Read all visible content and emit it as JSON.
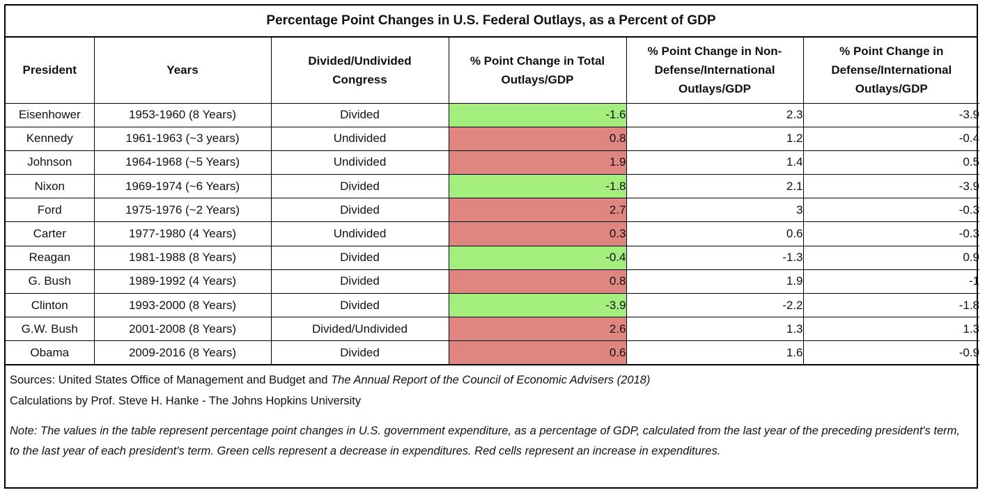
{
  "chart_data": {
    "type": "table",
    "title": "Percentage Point Changes in U.S. Federal Outlays, as a Percent of GDP",
    "columns": [
      "President",
      "Years",
      "Divided/Undivided Congress",
      "% Point Change in Total Outlays/GDP",
      "% Point Change in Non-Defense/International Outlays/GDP",
      "% Point Change in Defense/International Outlays/GDP"
    ],
    "rows": [
      {
        "president": "Eisenhower",
        "years": "1953-1960 (8 Years)",
        "congress": "Divided",
        "total": "-1.6",
        "nondefense": "2.3",
        "defense": "-3.9",
        "status": "decrease"
      },
      {
        "president": "Kennedy",
        "years": "1961-1963 (~3 years)",
        "congress": "Undivided",
        "total": "0.8",
        "nondefense": "1.2",
        "defense": "-0.4",
        "status": "increase"
      },
      {
        "president": "Johnson",
        "years": "1964-1968 (~5 Years)",
        "congress": "Undivided",
        "total": "1.9",
        "nondefense": "1.4",
        "defense": "0.5",
        "status": "increase"
      },
      {
        "president": "Nixon",
        "years": "1969-1974 (~6 Years)",
        "congress": "Divided",
        "total": "-1.8",
        "nondefense": "2.1",
        "defense": "-3.9",
        "status": "decrease"
      },
      {
        "president": "Ford",
        "years": "1975-1976 (~2 Years)",
        "congress": "Divided",
        "total": "2.7",
        "nondefense": "3",
        "defense": "-0.3",
        "status": "increase"
      },
      {
        "president": "Carter",
        "years": "1977-1980 (4 Years)",
        "congress": "Undivided",
        "total": "0.3",
        "nondefense": "0.6",
        "defense": "-0.3",
        "status": "increase"
      },
      {
        "president": "Reagan",
        "years": "1981-1988 (8 Years)",
        "congress": "Divided",
        "total": "-0.4",
        "nondefense": "-1.3",
        "defense": "0.9",
        "status": "decrease"
      },
      {
        "president": "G. Bush",
        "years": "1989-1992 (4 Years)",
        "congress": "Divided",
        "total": "0.8",
        "nondefense": "1.9",
        "defense": "-1",
        "status": "increase"
      },
      {
        "president": "Clinton",
        "years": "1993-2000 (8 Years)",
        "congress": "Divided",
        "total": "-3.9",
        "nondefense": "-2.2",
        "defense": "-1.8",
        "status": "decrease"
      },
      {
        "president": "G.W. Bush",
        "years": "2001-2008 (8 Years)",
        "congress": "Divided/Undivided",
        "total": "2.6",
        "nondefense": "1.3",
        "defense": "1.3",
        "status": "increase"
      },
      {
        "president": "Obama",
        "years": "2009-2016 (8 Years)",
        "congress": "Divided",
        "total": "0.6",
        "nondefense": "1.6",
        "defense": "-0.9",
        "status": "increase"
      }
    ],
    "colors": {
      "decrease": "#a4ee7e",
      "increase": "#e08680"
    }
  },
  "footer": {
    "sources_prefix": "Sources: United States Office of Management and Budget and ",
    "sources_italic": "The Annual Report of the Council of Economic Advisers (2018)",
    "calculations": "Calculations by Prof. Steve H. Hanke - The Johns Hopkins University",
    "note": "Note: The values in the table represent percentage point changes in U.S. government expenditure, as a percentage of GDP, calculated from the last year of the preceding president's term, to the last year of each president's term. Green cells represent a decrease in expenditures. Red cells represent an increase in expenditures."
  }
}
